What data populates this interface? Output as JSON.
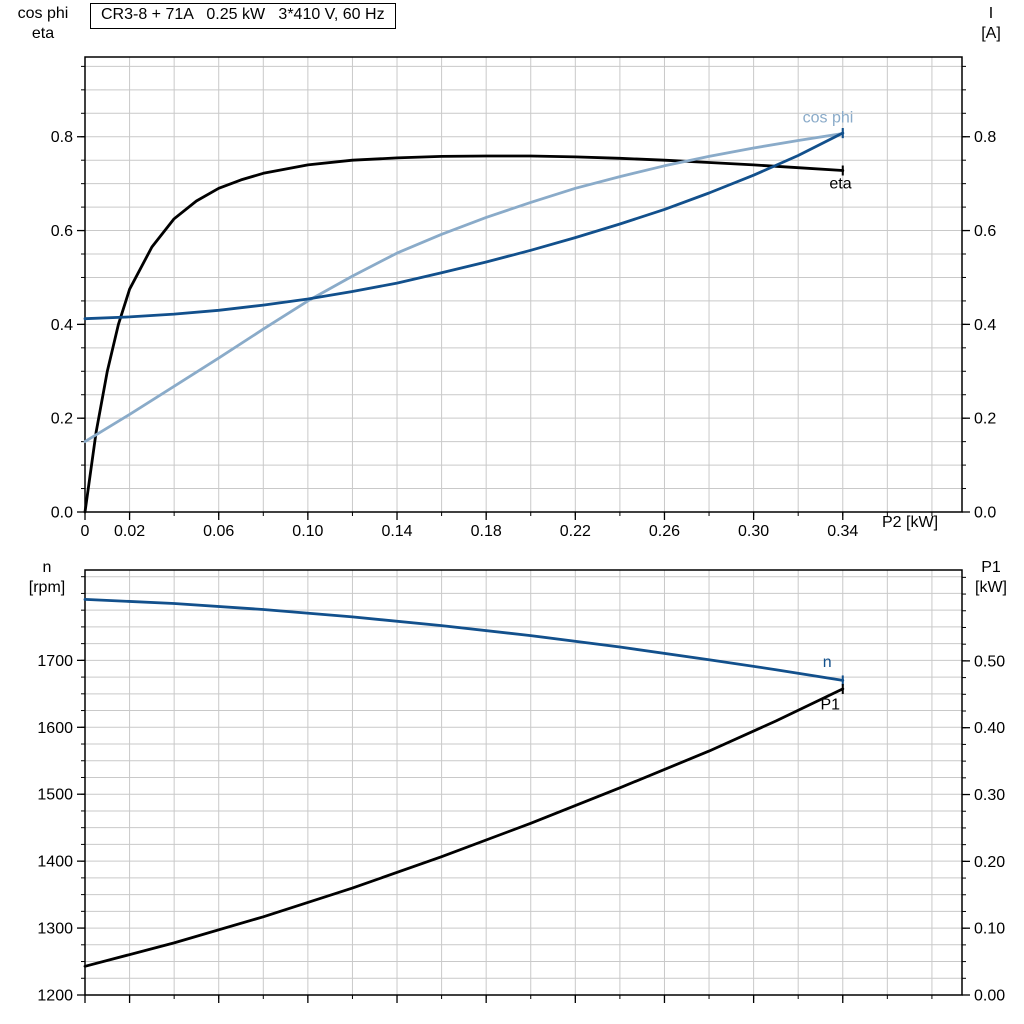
{
  "style": {
    "grid_color": "#c9c9c9",
    "frame_color": "#000000",
    "background": "#ffffff",
    "dark_blue": "#12508C",
    "light_blue": "#8AABC9"
  },
  "chart_data": [
    {
      "id": "motor-performance-chart",
      "type": "line",
      "title": "CR3-8 + 71A   0.25 kW   3*410 V, 60 Hz",
      "x_axis": {
        "min": 0,
        "max": 0.3935,
        "minor_step": 0.02,
        "show_tick_labels": true,
        "axis_label": "P2 [kW]",
        "tick_values": [
          0,
          0.02,
          0.06,
          0.1,
          0.14,
          0.18,
          0.22,
          0.26,
          0.3,
          0.34
        ],
        "tick_texts": [
          "0",
          "0.02",
          "0.06",
          "0.10",
          "0.14",
          "0.18",
          "0.22",
          "0.26",
          "0.30",
          "0.34"
        ]
      },
      "y_left": {
        "min": 0,
        "max": 0.97,
        "minor_step": 0.05,
        "axis_label_lines": [
          "cos phi",
          "eta"
        ],
        "tick_values": [
          0,
          0.2,
          0.4,
          0.6,
          0.8
        ],
        "tick_texts": [
          "0.0",
          "0.2",
          "0.4",
          "0.6",
          "0.8"
        ]
      },
      "y_right": {
        "min": 0,
        "max": 0.97,
        "minor_step": 0.05,
        "axis_label_lines": [
          "I",
          "[A]"
        ],
        "tick_values": [
          0,
          0.2,
          0.4,
          0.6,
          0.8
        ],
        "tick_texts": [
          "0.0",
          "0.2",
          "0.4",
          "0.6",
          "0.8"
        ]
      },
      "series": [
        {
          "name": "eta",
          "slug": "eta",
          "color": "#000000",
          "axis": "left",
          "label": {
            "text": "eta",
            "x": 0.334,
            "v": 0.69
          },
          "points": [
            [
              0,
              0
            ],
            [
              0.005,
              0.17
            ],
            [
              0.01,
              0.3
            ],
            [
              0.015,
              0.4
            ],
            [
              0.02,
              0.475
            ],
            [
              0.03,
              0.565
            ],
            [
              0.04,
              0.625
            ],
            [
              0.05,
              0.663
            ],
            [
              0.06,
              0.69
            ],
            [
              0.07,
              0.708
            ],
            [
              0.08,
              0.722
            ],
            [
              0.1,
              0.74
            ],
            [
              0.12,
              0.75
            ],
            [
              0.14,
              0.755
            ],
            [
              0.16,
              0.758
            ],
            [
              0.18,
              0.759
            ],
            [
              0.2,
              0.759
            ],
            [
              0.22,
              0.757
            ],
            [
              0.24,
              0.754
            ],
            [
              0.26,
              0.75
            ],
            [
              0.28,
              0.745
            ],
            [
              0.3,
              0.74
            ],
            [
              0.32,
              0.734
            ],
            [
              0.34,
              0.728
            ]
          ]
        },
        {
          "name": "cos phi",
          "slug": "cos-phi",
          "color": "#8AABC9",
          "axis": "left",
          "label": {
            "text": "cos phi",
            "x": 0.322,
            "v": 0.83
          },
          "points": [
            [
              0,
              0.15
            ],
            [
              0.02,
              0.208
            ],
            [
              0.04,
              0.268
            ],
            [
              0.06,
              0.328
            ],
            [
              0.08,
              0.39
            ],
            [
              0.1,
              0.45
            ],
            [
              0.12,
              0.503
            ],
            [
              0.14,
              0.552
            ],
            [
              0.16,
              0.592
            ],
            [
              0.18,
              0.628
            ],
            [
              0.2,
              0.66
            ],
            [
              0.22,
              0.69
            ],
            [
              0.24,
              0.715
            ],
            [
              0.26,
              0.738
            ],
            [
              0.28,
              0.758
            ],
            [
              0.3,
              0.776
            ],
            [
              0.32,
              0.792
            ],
            [
              0.34,
              0.807
            ]
          ]
        },
        {
          "name": "I",
          "slug": "current",
          "color": "#12508C",
          "axis": "right",
          "label": null,
          "points": [
            [
              0,
              0.412
            ],
            [
              0.02,
              0.416
            ],
            [
              0.04,
              0.422
            ],
            [
              0.06,
              0.43
            ],
            [
              0.08,
              0.441
            ],
            [
              0.1,
              0.454
            ],
            [
              0.12,
              0.47
            ],
            [
              0.14,
              0.488
            ],
            [
              0.16,
              0.51
            ],
            [
              0.18,
              0.533
            ],
            [
              0.2,
              0.558
            ],
            [
              0.22,
              0.585
            ],
            [
              0.24,
              0.614
            ],
            [
              0.26,
              0.645
            ],
            [
              0.28,
              0.68
            ],
            [
              0.3,
              0.718
            ],
            [
              0.32,
              0.76
            ],
            [
              0.34,
              0.808
            ]
          ]
        }
      ]
    },
    {
      "id": "speed-power-chart",
      "type": "line",
      "title": "",
      "x_axis": {
        "min": 0,
        "max": 0.3935,
        "minor_step": 0.02,
        "show_tick_labels": false,
        "axis_label": "",
        "tick_values": [
          0,
          0.02,
          0.06,
          0.1,
          0.14,
          0.18,
          0.22,
          0.26,
          0.3,
          0.34
        ],
        "tick_texts": []
      },
      "y_left": {
        "min": 1200,
        "max": 1835,
        "minor_step": 25,
        "axis_label_lines": [
          "n",
          "[rpm]"
        ],
        "tick_values": [
          1200,
          1300,
          1400,
          1500,
          1600,
          1700
        ],
        "tick_texts": [
          "1200",
          "1300",
          "1400",
          "1500",
          "1600",
          "1700"
        ]
      },
      "y_right": {
        "min": 0,
        "max": 0.636,
        "minor_step": 0.025,
        "axis_label_lines": [
          "P1",
          "[kW]"
        ],
        "tick_values": [
          0,
          0.1,
          0.2,
          0.3,
          0.4,
          0.5
        ],
        "tick_texts": [
          "0.00",
          "0.10",
          "0.20",
          "0.30",
          "0.40",
          "0.50"
        ]
      },
      "series": [
        {
          "name": "n",
          "slug": "speed",
          "color": "#12508C",
          "axis": "left",
          "label": {
            "text": "n",
            "x": 0.331,
            "v": 1690
          },
          "points": [
            [
              0,
              1791
            ],
            [
              0.04,
              1785
            ],
            [
              0.08,
              1776
            ],
            [
              0.12,
              1765
            ],
            [
              0.16,
              1752
            ],
            [
              0.2,
              1737
            ],
            [
              0.24,
              1720
            ],
            [
              0.28,
              1701
            ],
            [
              0.31,
              1686
            ],
            [
              0.34,
              1670
            ]
          ]
        },
        {
          "name": "P1",
          "slug": "p1",
          "color": "#000000",
          "axis": "right",
          "label": {
            "text": "P1",
            "x": 0.33,
            "v": 0.427
          },
          "points": [
            [
              0,
              0.043
            ],
            [
              0.04,
              0.078
            ],
            [
              0.08,
              0.117
            ],
            [
              0.12,
              0.16
            ],
            [
              0.16,
              0.207
            ],
            [
              0.2,
              0.257
            ],
            [
              0.24,
              0.31
            ],
            [
              0.28,
              0.365
            ],
            [
              0.31,
              0.41
            ],
            [
              0.34,
              0.458
            ]
          ]
        }
      ]
    }
  ]
}
